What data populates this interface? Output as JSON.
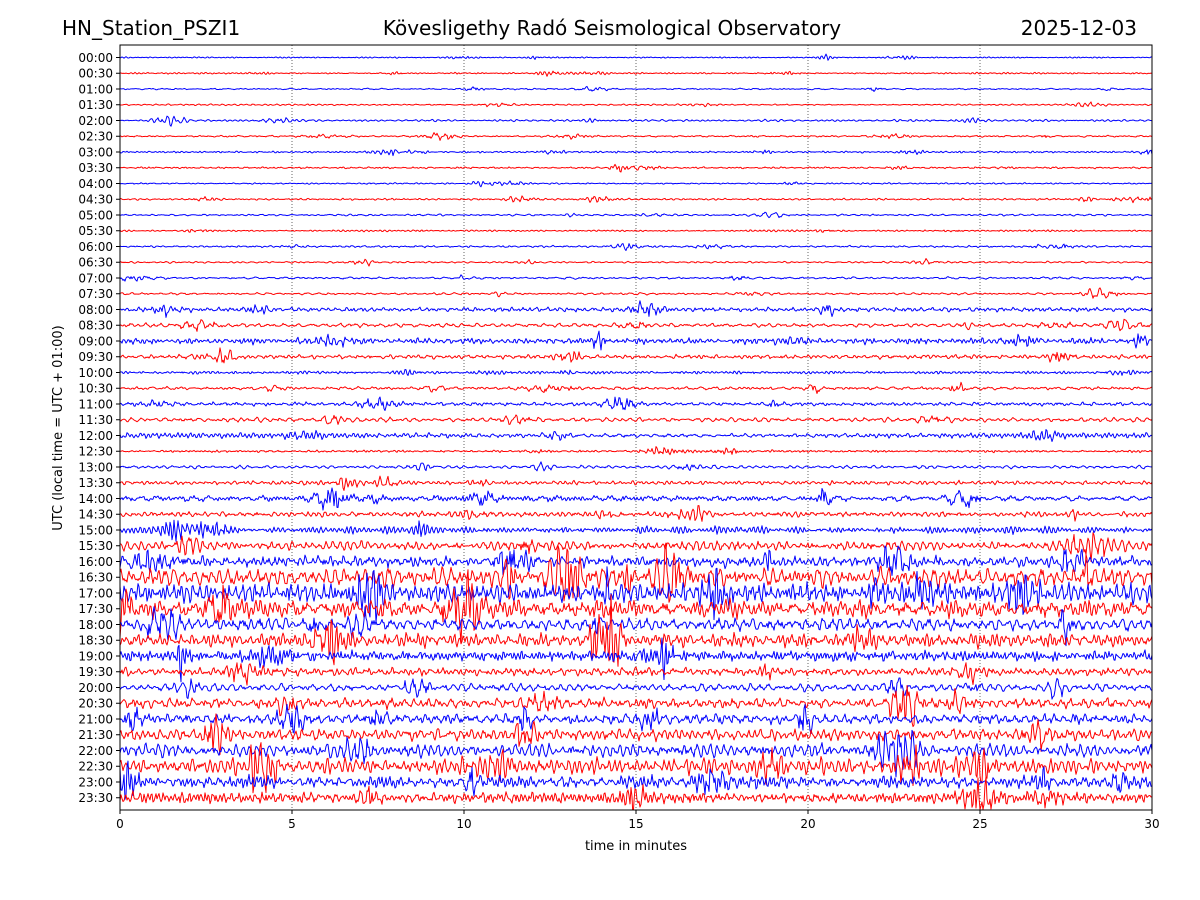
{
  "header": {
    "station": "HN_Station_PSZI1",
    "observatory": "Kövesligethy Radó Seismological Observatory",
    "date": "2025-12-03"
  },
  "chart_data": {
    "type": "line",
    "title": "Kövesligethy Radó Seismological Observatory",
    "xlabel": "time in minutes",
    "ylabel": "UTC (local time = UTC + 01:00)",
    "xlim": [
      0,
      30
    ],
    "x_ticks": [
      0,
      5,
      10,
      15,
      20,
      25,
      30
    ],
    "x_tick_labels": [
      "0",
      "5",
      "10",
      "15",
      "20",
      "25",
      "30"
    ],
    "vertical_grid": "dotted at 5, 10, 15, 20, 25",
    "trace_colors": [
      "#0000ff",
      "#ff0000"
    ],
    "row_labels": [
      "00:00",
      "00:30",
      "01:00",
      "01:30",
      "02:00",
      "02:30",
      "03:00",
      "03:30",
      "04:00",
      "04:30",
      "05:00",
      "05:30",
      "06:00",
      "06:30",
      "07:00",
      "07:30",
      "08:00",
      "08:30",
      "09:00",
      "09:30",
      "10:00",
      "10:30",
      "11:00",
      "11:30",
      "12:00",
      "12:30",
      "13:00",
      "13:30",
      "14:00",
      "14:30",
      "15:00",
      "15:30",
      "16:00",
      "16:30",
      "17:00",
      "17:30",
      "18:00",
      "18:30",
      "19:00",
      "19:30",
      "20:00",
      "20:30",
      "21:00",
      "21:30",
      "22:00",
      "22:30",
      "23:00",
      "23:30"
    ],
    "relative_amplitude": [
      0.12,
      0.12,
      0.12,
      0.12,
      0.14,
      0.13,
      0.14,
      0.14,
      0.12,
      0.12,
      0.15,
      0.15,
      0.15,
      0.15,
      0.18,
      0.16,
      0.3,
      0.35,
      0.45,
      0.35,
      0.3,
      0.25,
      0.3,
      0.35,
      0.35,
      0.25,
      0.25,
      0.3,
      0.45,
      0.5,
      0.55,
      0.8,
      1.1,
      1.3,
      1.4,
      1.4,
      1.2,
      0.9,
      0.9,
      0.7,
      0.7,
      0.8,
      1.0,
      1.1,
      1.1,
      1.0,
      0.9,
      1.0
    ]
  }
}
